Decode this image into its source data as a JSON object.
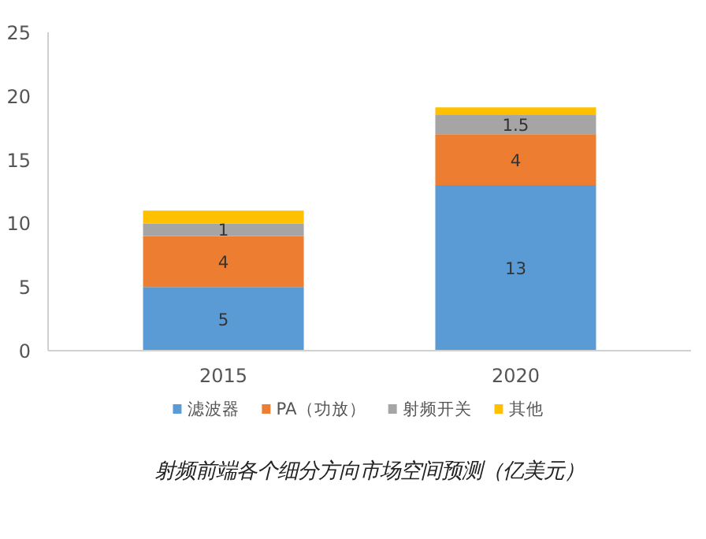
{
  "chart_data": {
    "type": "bar",
    "stacked": true,
    "categories": [
      "2015",
      "2020"
    ],
    "series": [
      {
        "name": "滤波器",
        "color": "#5b9bd5",
        "values": [
          5,
          13
        ],
        "value_labels": [
          "5",
          "13"
        ]
      },
      {
        "name": "PA（功放）",
        "color": "#ed7d31",
        "values": [
          4,
          4
        ],
        "value_labels": [
          "4",
          "4"
        ]
      },
      {
        "name": "射频开关",
        "color": "#a5a5a5",
        "values": [
          1,
          1.5
        ],
        "value_labels": [
          "1",
          "1.5"
        ]
      },
      {
        "name": "其他",
        "color": "#ffc000",
        "values": [
          1,
          0.6
        ]
      }
    ],
    "ylim": [
      0,
      25
    ],
    "yticks": [
      0,
      5,
      10,
      15,
      20,
      25
    ],
    "grid": false,
    "legend": "bottom",
    "annotations": [
      "射频前端各个细分方向市场空间预测（亿美元）"
    ]
  }
}
